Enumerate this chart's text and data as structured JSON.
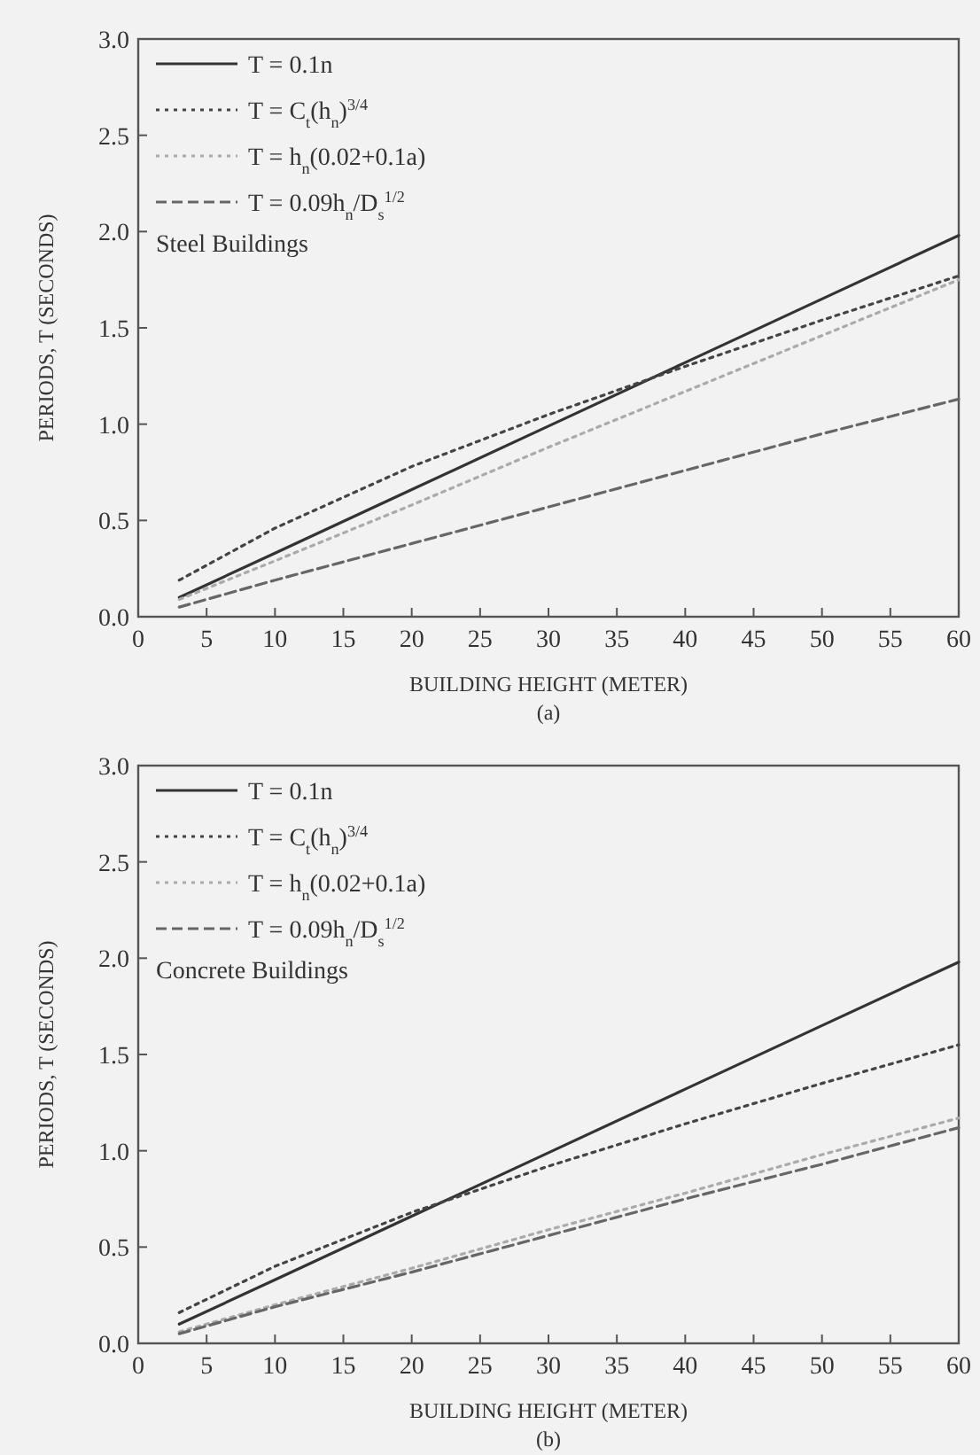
{
  "chart_data": [
    {
      "type": "line",
      "xlabel": "BUILDING HEIGHT (METER)",
      "ylabel": "PERIODS, T (SECONDS)",
      "xlim": [
        0,
        60
      ],
      "ylim": [
        0,
        3
      ],
      "xticks": [
        0,
        5,
        10,
        15,
        20,
        25,
        30,
        35,
        40,
        45,
        50,
        55,
        60
      ],
      "yticks": [
        {
          "value": 0,
          "label": "0.0"
        },
        {
          "value": 0.5,
          "label": "0.5"
        },
        {
          "value": 1,
          "label": "1.0"
        },
        {
          "value": 1.5,
          "label": "1.5"
        },
        {
          "value": 2,
          "label": "2.0"
        },
        {
          "value": 2.5,
          "label": "2.5"
        },
        {
          "value": 3,
          "label": "3.0"
        }
      ],
      "x": [
        3,
        10,
        20,
        30,
        40,
        50,
        60
      ],
      "legend": "top left",
      "grid": false,
      "series": [
        {
          "name": "T = 0.1n",
          "color": "#333333",
          "line_style": "solid",
          "values": [
            0.1,
            0.33,
            0.66,
            0.99,
            1.32,
            1.65,
            1.98
          ]
        },
        {
          "name": "T = C$_{t}$(h$_{n}$)$^{3/4}$",
          "color": "#444444",
          "line_style": "dotted",
          "values": [
            0.19,
            0.46,
            0.78,
            1.05,
            1.3,
            1.54,
            1.77
          ]
        },
        {
          "name": "T = h$_{n}$(0.02+0.1a)",
          "color": "#aaaaaa",
          "line_style": "dotted",
          "values": [
            0.09,
            0.29,
            0.58,
            0.88,
            1.17,
            1.46,
            1.75
          ]
        },
        {
          "name": "T = 0.09h$_{n}$/D$_{s}$$^{1/2}$",
          "color": "#666666",
          "line_style": "dashed",
          "values": [
            0.05,
            0.19,
            0.38,
            0.57,
            0.76,
            0.95,
            1.13
          ]
        }
      ],
      "annotations": [
        "Steel Buildings",
        "(a)"
      ]
    },
    {
      "type": "line",
      "xlabel": "BUILDING HEIGHT (METER)",
      "ylabel": "PERIODS, T (SECONDS)",
      "xlim": [
        0,
        60
      ],
      "ylim": [
        0,
        3
      ],
      "xticks": [
        0,
        5,
        10,
        15,
        20,
        25,
        30,
        35,
        40,
        45,
        50,
        55,
        60
      ],
      "yticks": [
        {
          "value": 0,
          "label": "0.0"
        },
        {
          "value": 0.5,
          "label": "0.5"
        },
        {
          "value": 1,
          "label": "1.0"
        },
        {
          "value": 1.5,
          "label": "1.5"
        },
        {
          "value": 2,
          "label": "2.0"
        },
        {
          "value": 2.5,
          "label": "2.5"
        },
        {
          "value": 3,
          "label": "3.0"
        }
      ],
      "x": [
        3,
        10,
        20,
        30,
        40,
        50,
        60
      ],
      "legend": "top left",
      "grid": false,
      "series": [
        {
          "name": "T = 0.1n",
          "color": "#333333",
          "line_style": "solid",
          "values": [
            0.1,
            0.33,
            0.66,
            0.99,
            1.32,
            1.65,
            1.98
          ]
        },
        {
          "name": "T = C$_{t}$(h$_{n}$)$^{3/4}$",
          "color": "#444444",
          "line_style": "dotted",
          "values": [
            0.16,
            0.4,
            0.68,
            0.92,
            1.14,
            1.35,
            1.55
          ]
        },
        {
          "name": "T = h$_{n}$(0.02+0.1a)",
          "color": "#aaaaaa",
          "line_style": "dotted",
          "values": [
            0.06,
            0.2,
            0.39,
            0.59,
            0.78,
            0.98,
            1.17
          ]
        },
        {
          "name": "T = 0.09h$_{n}$/D$_{s}$$^{1/2}$",
          "color": "#666666",
          "line_style": "dashed",
          "values": [
            0.05,
            0.19,
            0.37,
            0.56,
            0.75,
            0.93,
            1.12
          ]
        }
      ],
      "annotations": [
        "Concrete Buildings",
        "(b)"
      ]
    }
  ]
}
